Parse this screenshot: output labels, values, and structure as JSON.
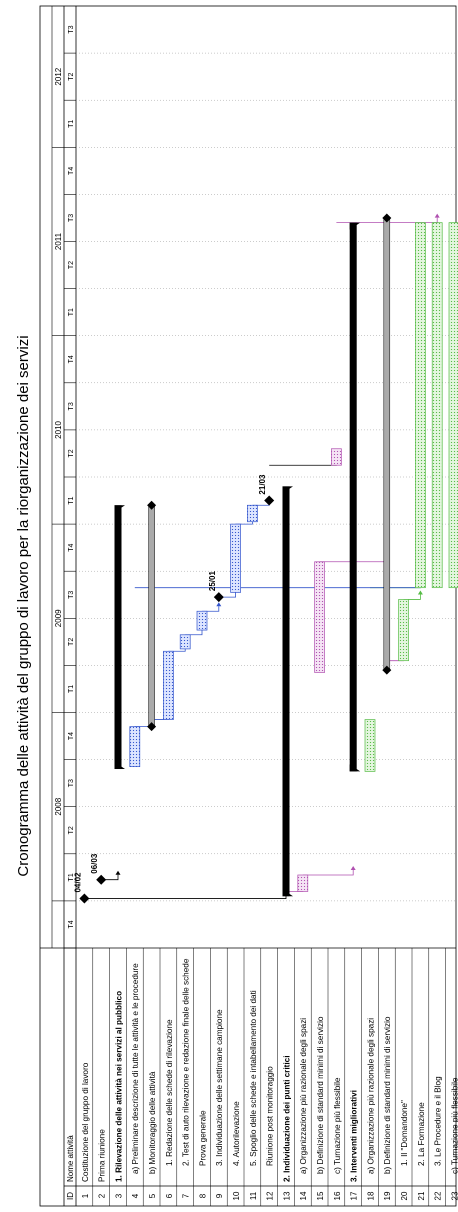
{
  "chart_data": {
    "type": "gantt",
    "title": "Cronogramma delle attività del gruppo di lavoro per la riorganizzazione dei servizi",
    "header": {
      "id": "ID",
      "name": "Nome attività"
    },
    "years": [
      "2008",
      "2009",
      "2010",
      "2011",
      "2012"
    ],
    "quarters": [
      "T4",
      "T1",
      "T2",
      "T3",
      "T4",
      "T1",
      "T2",
      "T3",
      "T4",
      "T1",
      "T2",
      "T3",
      "T4",
      "T1",
      "T2",
      "T3",
      "T4",
      "T1",
      "T2",
      "T3"
    ],
    "rows": [
      {
        "id": "1",
        "name": "Costituzione del gruppo di lavoro",
        "bold": false
      },
      {
        "id": "2",
        "name": "Prima riunione",
        "bold": false
      },
      {
        "id": "3",
        "name": "1. Rilevazione delle attività nei servizi al pubblico",
        "bold": true
      },
      {
        "id": "4",
        "name": "a) Preliminare descrizione di tutte le attività e le procedure",
        "bold": false
      },
      {
        "id": "5",
        "name": "b) Monitoraggio delle attività",
        "bold": false
      },
      {
        "id": "6",
        "name": "1. Redazione delle schede di rilevazione",
        "bold": false
      },
      {
        "id": "7",
        "name": "2. Test di auto rilevazione e redazione finale delle schede",
        "bold": false
      },
      {
        "id": "8",
        "name": "Prova generale",
        "bold": false
      },
      {
        "id": "9",
        "name": "3. Individuazione delle settimane campione",
        "bold": false
      },
      {
        "id": "10",
        "name": "4. Autorilevazione",
        "bold": false
      },
      {
        "id": "11",
        "name": "5. Spoglio delle schede e intabellamento dei dati",
        "bold": false
      },
      {
        "id": "12",
        "name": "Riunione post monitoraggio",
        "bold": false
      },
      {
        "id": "13",
        "name": "2. Individuazione dei punti critici",
        "bold": true
      },
      {
        "id": "14",
        "name": "a) Organizzazione più razionale degli spazi",
        "bold": false
      },
      {
        "id": "15",
        "name": "b) Definizione di standard minimi di servizio",
        "bold": false
      },
      {
        "id": "16",
        "name": "c) Turnazione più flessibile",
        "bold": false
      },
      {
        "id": "17",
        "name": "3. Interventi migliorativi",
        "bold": true
      },
      {
        "id": "18",
        "name": "a) Organizzazione più razionale degli spazi",
        "bold": false
      },
      {
        "id": "19",
        "name": "b) Definizione di standard minimi di servizio",
        "bold": false
      },
      {
        "id": "20",
        "name": "1. Il \"Domandone\"",
        "bold": false
      },
      {
        "id": "21",
        "name": "2. La Formazione",
        "bold": false
      },
      {
        "id": "22",
        "name": "3. Le Procedure e il Blog",
        "bold": false
      },
      {
        "id": "23",
        "name": "c) Turnazione più flessibile",
        "bold": false
      }
    ],
    "tasks": [
      {
        "row": 1,
        "kind": "milestone",
        "at": 1.05,
        "label": "04/02"
      },
      {
        "row": 2,
        "kind": "milestone",
        "at": 1.45,
        "label": "06/03"
      },
      {
        "row": 3,
        "kind": "summary",
        "start": 3.8,
        "end": 9.4
      },
      {
        "row": 4,
        "kind": "task",
        "start": 3.85,
        "end": 4.7,
        "color": "blue"
      },
      {
        "row": 5,
        "kind": "split",
        "start": 4.7,
        "end": 9.4
      },
      {
        "row": 6,
        "kind": "task",
        "start": 4.85,
        "end": 6.3,
        "color": "blue"
      },
      {
        "row": 7,
        "kind": "task",
        "start": 6.35,
        "end": 6.65,
        "color": "blue"
      },
      {
        "row": 8,
        "kind": "task",
        "start": 6.75,
        "end": 7.15,
        "color": "blue"
      },
      {
        "row": 9,
        "kind": "milestone",
        "at": 7.45,
        "label": "25/01"
      },
      {
        "row": 10,
        "kind": "task",
        "start": 7.55,
        "end": 9.0,
        "color": "blue"
      },
      {
        "row": 11,
        "kind": "task",
        "start": 9.05,
        "end": 9.4,
        "color": "blue"
      },
      {
        "row": 12,
        "kind": "milestone",
        "at": 9.5,
        "label": "21/03"
      },
      {
        "row": 13,
        "kind": "summary",
        "start": 1.1,
        "end": 9.8
      },
      {
        "row": 14,
        "kind": "task",
        "start": 1.2,
        "end": 1.55,
        "color": "magenta"
      },
      {
        "row": 15,
        "kind": "task",
        "start": 5.85,
        "end": 8.2,
        "color": "magenta"
      },
      {
        "row": 16,
        "kind": "task",
        "start": 10.25,
        "end": 10.6,
        "color": "magenta"
      },
      {
        "row": 17,
        "kind": "summary",
        "start": 3.75,
        "end": 15.4
      },
      {
        "row": 18,
        "kind": "task",
        "start": 3.75,
        "end": 4.85,
        "color": "green"
      },
      {
        "row": 19,
        "kind": "split",
        "start": 5.9,
        "end": 15.5
      },
      {
        "row": 20,
        "kind": "task",
        "start": 6.1,
        "end": 7.4,
        "color": "green"
      },
      {
        "row": 21,
        "kind": "task",
        "start": 7.65,
        "end": 15.4,
        "color": "green"
      },
      {
        "row": 22,
        "kind": "task",
        "start": 7.65,
        "end": 15.4,
        "color": "green"
      },
      {
        "row": 23,
        "kind": "task",
        "start": 7.65,
        "end": 15.4,
        "color": "green"
      }
    ],
    "links": [
      {
        "from": 1,
        "to": 13,
        "at": 1.05,
        "color": "black"
      },
      {
        "from": 2,
        "to": 3,
        "at": 1.45,
        "color": "black"
      },
      {
        "from": 4,
        "to": 5,
        "at": 4.7,
        "color": "blue"
      },
      {
        "from": 5,
        "to": 6,
        "at": 4.85,
        "color": "blue"
      },
      {
        "from": 6,
        "to": 7,
        "at": 6.3,
        "color": "blue"
      },
      {
        "from": 7,
        "to": 8,
        "at": 6.65,
        "color": "blue"
      },
      {
        "from": 8,
        "to": 9,
        "at": 7.15,
        "color": "blue"
      },
      {
        "from": 9,
        "to": 10,
        "at": 7.45,
        "color": "blue"
      },
      {
        "from": 10,
        "to": 11,
        "at": 9.0,
        "color": "blue"
      },
      {
        "from": 11,
        "to": 12,
        "at": 9.4,
        "color": "blue"
      },
      {
        "from": 13,
        "to": 14,
        "at": 1.2,
        "color": "magenta"
      },
      {
        "from": 14,
        "to": 17,
        "at": 1.55,
        "color": "magenta"
      },
      {
        "from": 12,
        "to": 16,
        "at": 10.25,
        "color": "black"
      },
      {
        "from": 15,
        "to": 19,
        "at": 8.2,
        "color": "magenta"
      },
      {
        "from": 16,
        "to": 22,
        "at": 15.4,
        "color": "magenta"
      },
      {
        "from": 18,
        "to": 21,
        "at": 7.65,
        "color": "green"
      },
      {
        "from": 20,
        "to": 21,
        "at": 7.4,
        "color": "green"
      },
      {
        "from": 19,
        "to": 20,
        "at": 6.1,
        "color": "magenta"
      },
      {
        "from": 4,
        "to": 21,
        "at": 7.65,
        "color": "blue"
      }
    ],
    "colors": {
      "blue": "#3355cc",
      "magenta": "#b050b0",
      "green": "#55bb44",
      "black": "#000000",
      "split": "#aaaaaa"
    }
  }
}
